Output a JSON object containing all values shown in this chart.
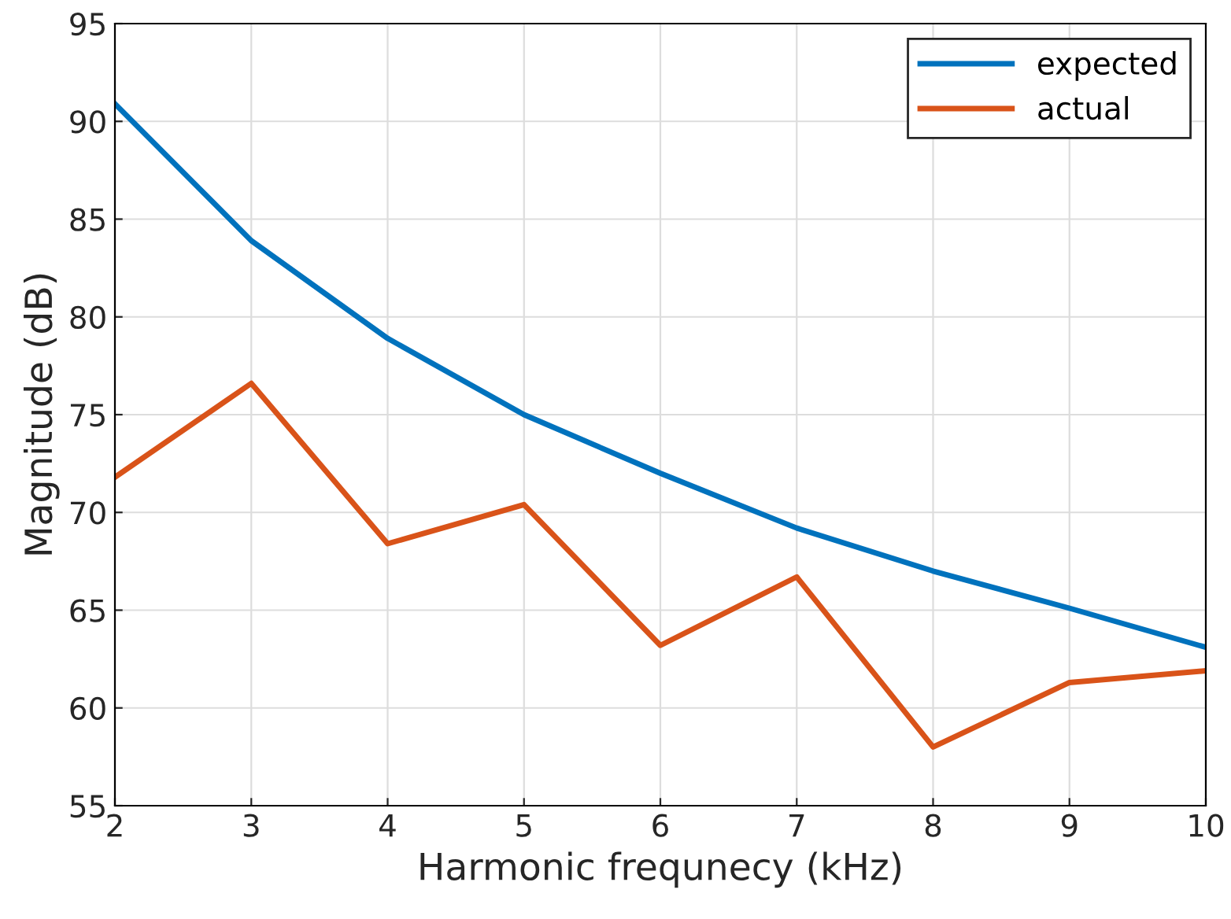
{
  "chart_data": {
    "type": "line",
    "xlabel": "Harmonic frequnecy (kHz)",
    "ylabel": "Magnitude (dB)",
    "x": [
      2,
      3,
      4,
      5,
      6,
      7,
      8,
      9,
      10
    ],
    "series": [
      {
        "name": "expected",
        "color": "#0072bd",
        "values": [
          90.9,
          83.9,
          78.9,
          75.0,
          72.0,
          69.2,
          67.0,
          65.1,
          63.1
        ]
      },
      {
        "name": "actual",
        "color": "#d95319",
        "values": [
          71.8,
          76.6,
          68.4,
          70.4,
          63.2,
          66.7,
          58.0,
          61.3,
          61.9
        ]
      }
    ],
    "xlim": [
      2,
      10
    ],
    "xticks": [
      2,
      3,
      4,
      5,
      6,
      7,
      8,
      9,
      10
    ],
    "ylim": [
      55,
      95
    ],
    "yticks": [
      55,
      60,
      65,
      70,
      75,
      80,
      85,
      90,
      95
    ],
    "grid": true,
    "legend": "top right",
    "line_style": "solid",
    "marker": "none"
  }
}
